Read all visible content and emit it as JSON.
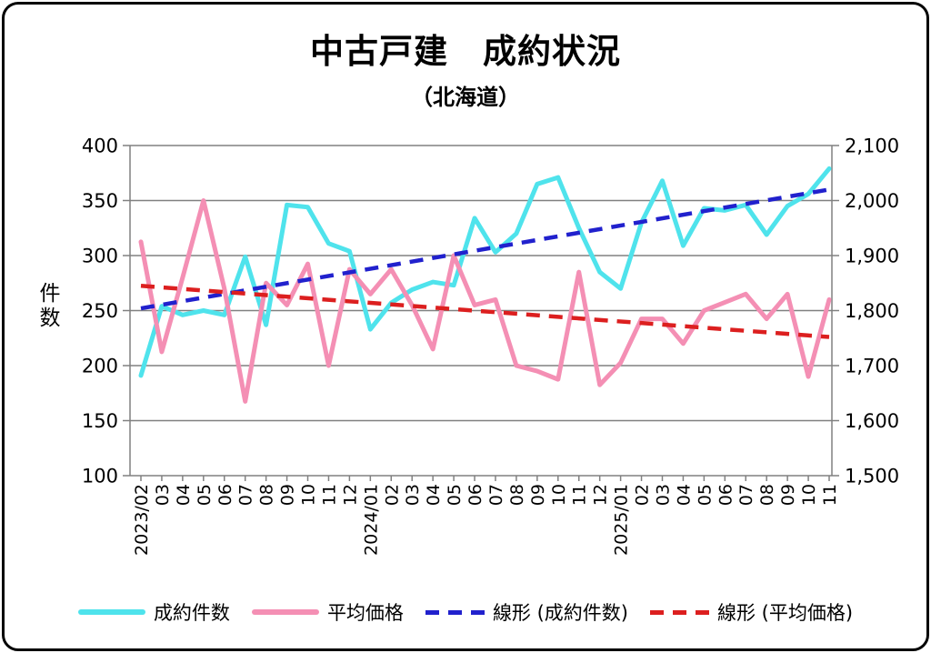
{
  "title": "中古戸建　成約状況",
  "subtitle": "（北海道）",
  "chart_data": {
    "type": "line",
    "title": "中古戸建　成約状況",
    "subtitle": "（北海道）",
    "x_labels": [
      "2023/02",
      "03",
      "04",
      "05",
      "06",
      "07",
      "08",
      "09",
      "10",
      "11",
      "12",
      "2024/01",
      "02",
      "03",
      "04",
      "05",
      "06",
      "07",
      "08",
      "09",
      "10",
      "11",
      "12",
      "2025/01",
      "02",
      "03",
      "04",
      "05",
      "06",
      "07",
      "08",
      "09",
      "10",
      "11"
    ],
    "series": [
      {
        "name": "成約件数",
        "axis": "left",
        "style": "solid",
        "color": "#4FE3EC",
        "values": [
          191,
          254,
          246,
          250,
          246,
          299,
          237,
          346,
          344,
          311,
          304,
          233,
          257,
          269,
          276,
          273,
          334,
          303,
          320,
          365,
          371,
          325,
          285,
          270,
          330,
          368,
          309,
          343,
          341,
          346,
          319,
          345,
          356,
          379
        ]
      },
      {
        "name": "平均価格",
        "axis": "right",
        "style": "solid",
        "color": "#F48FB4",
        "values": [
          1925,
          1725,
          1860,
          2000,
          1840,
          1635,
          1850,
          1810,
          1885,
          1700,
          1875,
          1830,
          1875,
          1810,
          1730,
          1900,
          1810,
          1820,
          1700,
          1690,
          1675,
          1870,
          1665,
          1705,
          1785,
          1785,
          1740,
          1800,
          1815,
          1830,
          1785,
          1830,
          1680,
          1820
        ]
      },
      {
        "name": "線形 (成約件数)",
        "axis": "left",
        "style": "dashed",
        "color": "#2121CD",
        "trend_endpoints": [
          252,
          360
        ]
      },
      {
        "name": "線形 (平均価格)",
        "axis": "right",
        "style": "dashed",
        "color": "#DC1F1F",
        "trend_endpoints": [
          1845,
          1752
        ]
      }
    ],
    "left_axis": {
      "title": "件数",
      "min": 100,
      "max": 400,
      "tick_step": 50,
      "tick_labels": [
        "400",
        "350",
        "300",
        "250",
        "200",
        "150",
        "100"
      ]
    },
    "right_axis": {
      "min": 1500,
      "max": 2100,
      "tick_step": 100,
      "tick_labels": [
        "2,100",
        "2,000",
        "1,900",
        "1,800",
        "1,700",
        "1,600",
        "1,500"
      ]
    },
    "grid": true,
    "legend_position": "bottom"
  }
}
